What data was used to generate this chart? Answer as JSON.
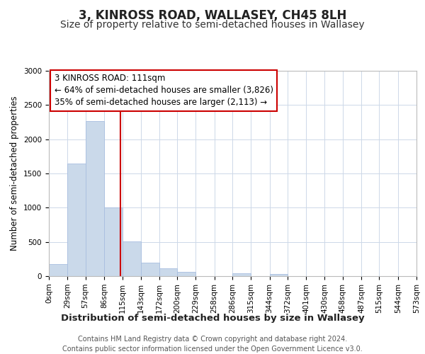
{
  "title": "3, KINROSS ROAD, WALLASEY, CH45 8LH",
  "subtitle": "Size of property relative to semi-detached houses in Wallasey",
  "xlabel": "Distribution of semi-detached houses by size in Wallasey",
  "ylabel": "Number of semi-detached properties",
  "bin_edges": [
    0,
    29,
    57,
    86,
    115,
    143,
    172,
    200,
    229,
    258,
    286,
    315,
    344,
    372,
    401,
    430,
    458,
    487,
    515,
    544,
    573
  ],
  "bin_labels": [
    "0sqm",
    "29sqm",
    "57sqm",
    "86sqm",
    "115sqm",
    "143sqm",
    "172sqm",
    "200sqm",
    "229sqm",
    "258sqm",
    "286sqm",
    "315sqm",
    "344sqm",
    "372sqm",
    "401sqm",
    "430sqm",
    "458sqm",
    "487sqm",
    "515sqm",
    "544sqm",
    "573sqm"
  ],
  "counts": [
    175,
    1640,
    2265,
    1000,
    510,
    200,
    115,
    60,
    0,
    0,
    45,
    0,
    35,
    0,
    0,
    0,
    0,
    0,
    0,
    0
  ],
  "bar_color": "#cad9ea",
  "bar_edge_color": "#a8bee0",
  "vline_x": 111,
  "vline_color": "#cc0000",
  "annotation_title": "3 KINROSS ROAD: 111sqm",
  "annotation_line1": "← 64% of semi-detached houses are smaller (3,826)",
  "annotation_line2": "35% of semi-detached houses are larger (2,113) →",
  "annotation_box_color": "#ffffff",
  "annotation_box_edge": "#cc0000",
  "ylim": [
    0,
    3000
  ],
  "yticks": [
    0,
    500,
    1000,
    1500,
    2000,
    2500,
    3000
  ],
  "grid_color": "#cdd8e8",
  "footer_line1": "Contains HM Land Registry data © Crown copyright and database right 2024.",
  "footer_line2": "Contains public sector information licensed under the Open Government Licence v3.0.",
  "title_fontsize": 12,
  "subtitle_fontsize": 10,
  "ylabel_fontsize": 8.5,
  "xlabel_fontsize": 9.5,
  "tick_fontsize": 7.5,
  "annot_fontsize": 8.5,
  "footer_fontsize": 7
}
